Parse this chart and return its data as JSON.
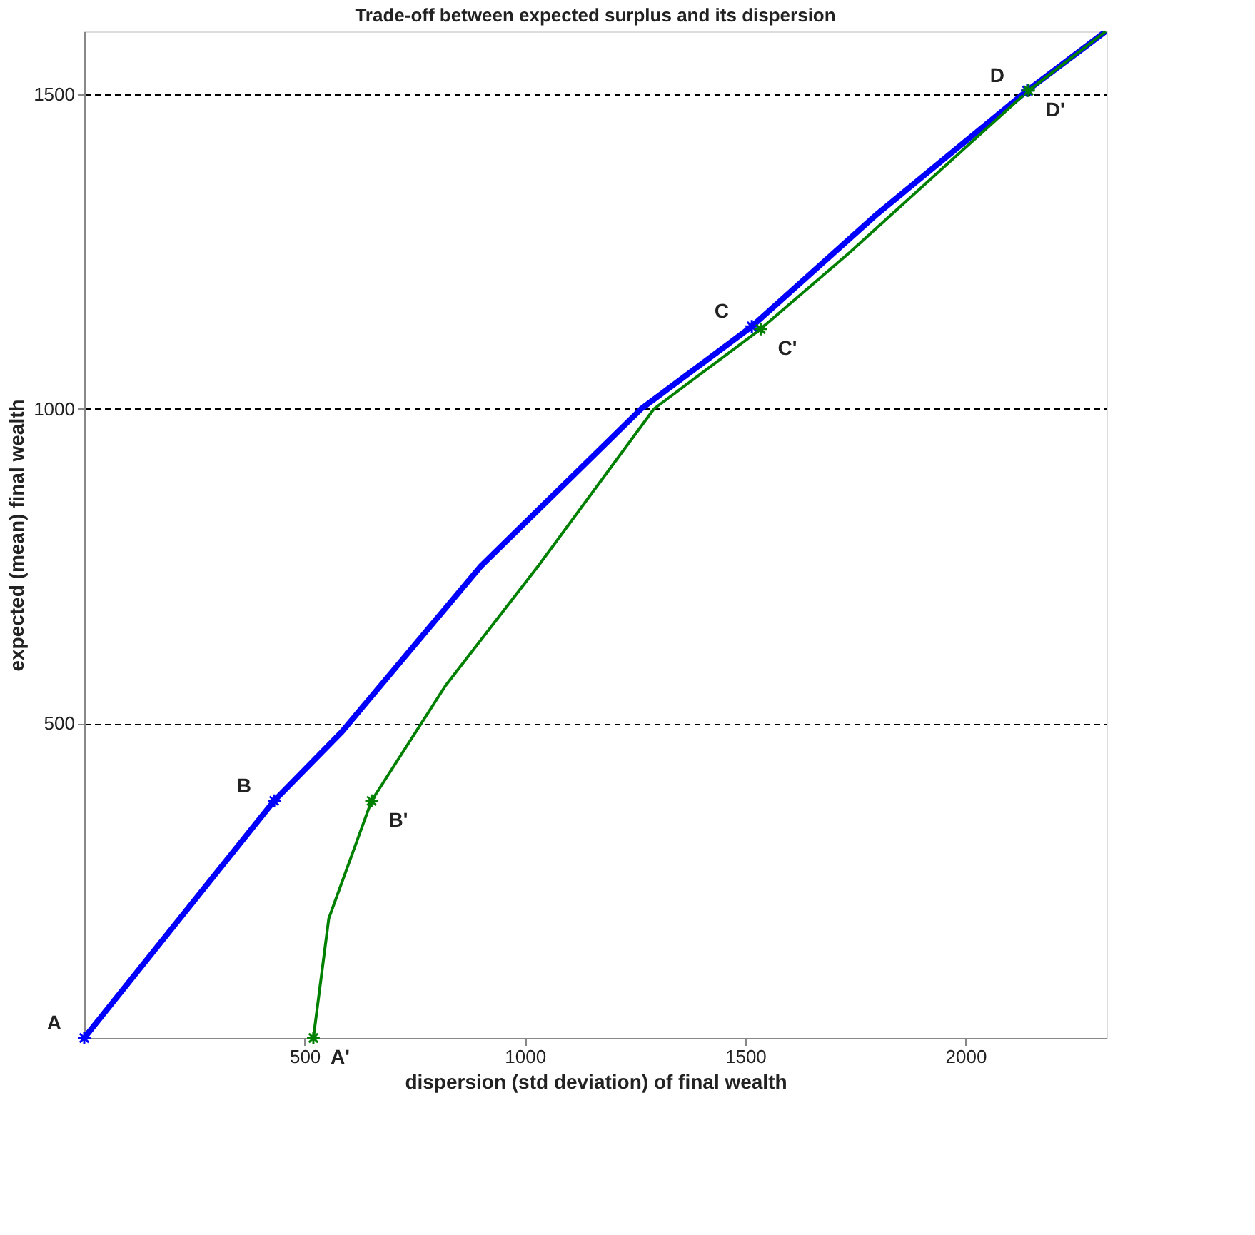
{
  "chart_data": {
    "type": "line",
    "title": "Trade-off between expected surplus and its dispersion",
    "xlabel": "dispersion (std deviation) of final wealth",
    "ylabel": "expected (mean) final wealth",
    "xlim": [
      0,
      2320
    ],
    "ylim": [
      0,
      1600
    ],
    "xticks": [
      500,
      1000,
      1500,
      2000
    ],
    "yticks": [
      500,
      1000,
      1500
    ],
    "grid": "y",
    "line_style": "solid",
    "marker": "none",
    "series": [
      {
        "color": "#0000ff",
        "x": [
          0,
          431,
          585,
          900,
          1264,
          1515,
          1800,
          2140,
          2318
        ],
        "values": [
          0,
          377,
          487,
          750,
          1000,
          1131,
          1310,
          1506,
          1600
        ]
      },
      {
        "color": "#008000",
        "x": [
          520,
          555,
          652,
          820,
          1030,
          1293,
          1535,
          1736,
          2143,
          2318
        ],
        "values": [
          0,
          190,
          377,
          560,
          750,
          1000,
          1127,
          1248,
          1506,
          1600
        ]
      },
      {
        "type": "scatter",
        "marker": "cross",
        "color": "#0000ff",
        "x": [
          0,
          431,
          1515,
          2140
        ],
        "values": [
          0,
          377,
          1131,
          1506
        ]
      },
      {
        "type": "scatter",
        "marker": "cross",
        "color": "#008000",
        "x": [
          520,
          652,
          1535,
          2143
        ],
        "values": [
          0,
          377,
          1127,
          1506
        ]
      }
    ],
    "annotations": [
      {
        "text": "A",
        "x": 0,
        "y": 0
      },
      {
        "text": "B",
        "x": 431,
        "y": 377
      },
      {
        "text": "C",
        "x": 1515,
        "y": 1131
      },
      {
        "text": "D",
        "x": 2140,
        "y": 1506
      },
      {
        "text": "A'",
        "x": 520,
        "y": 0
      },
      {
        "text": "B'",
        "x": 652,
        "y": 377
      },
      {
        "text": "C'",
        "x": 1535,
        "y": 1127
      },
      {
        "text": "D'",
        "x": 2143,
        "y": 1506
      }
    ]
  }
}
